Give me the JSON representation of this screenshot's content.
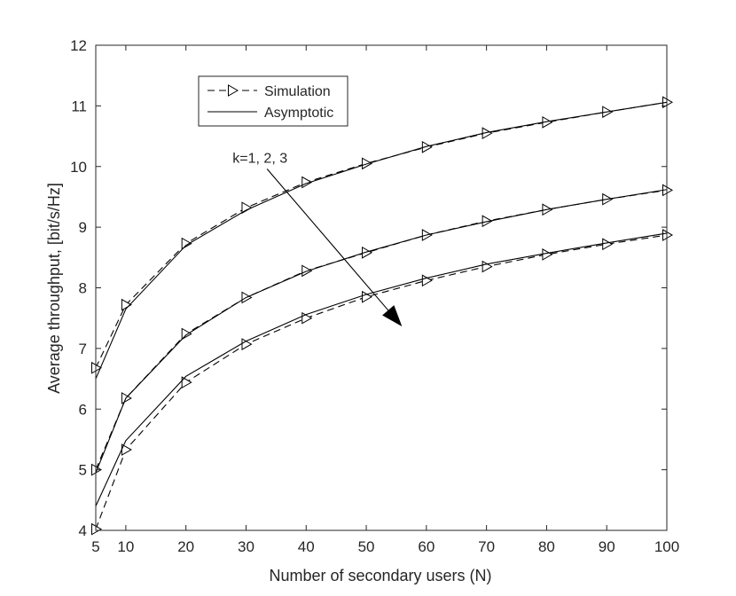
{
  "chart_data": {
    "type": "line",
    "title": "",
    "xlabel": "Number of secondary users (N)",
    "ylabel": "Average throughput, [bit/s/Hz]",
    "xlim": [
      5,
      100
    ],
    "ylim": [
      4,
      12
    ],
    "xticks": [
      5,
      10,
      20,
      30,
      40,
      50,
      60,
      70,
      80,
      90,
      100
    ],
    "yticks": [
      4,
      5,
      6,
      7,
      8,
      9,
      10,
      11,
      12
    ],
    "grid": false,
    "legend_position": "top-left",
    "x": [
      5,
      10,
      20,
      30,
      40,
      50,
      60,
      70,
      80,
      90,
      100
    ],
    "series": [
      {
        "name": "Simulation",
        "group": "k=1",
        "style": "dashed",
        "marker": "triangle-right",
        "values": [
          6.68,
          7.72,
          8.73,
          9.32,
          9.74,
          10.05,
          10.32,
          10.55,
          10.73,
          10.9,
          11.06
        ]
      },
      {
        "name": "Asymptotic",
        "group": "k=1",
        "style": "solid",
        "marker": "none",
        "values": [
          6.5,
          7.65,
          8.7,
          9.28,
          9.72,
          10.04,
          10.33,
          10.56,
          10.74,
          10.9,
          11.06
        ]
      },
      {
        "name": "Simulation",
        "group": "k=2",
        "style": "dashed",
        "marker": "triangle-right",
        "values": [
          5.0,
          6.18,
          7.24,
          7.84,
          8.28,
          8.58,
          8.87,
          9.1,
          9.29,
          9.46,
          9.61
        ]
      },
      {
        "name": "Asymptotic",
        "group": "k=2",
        "style": "solid",
        "marker": "none",
        "values": [
          4.95,
          6.18,
          7.22,
          7.84,
          8.27,
          8.59,
          8.87,
          9.09,
          9.29,
          9.46,
          9.62
        ]
      },
      {
        "name": "Simulation",
        "group": "k=3",
        "style": "dashed",
        "marker": "triangle-right",
        "values": [
          4.02,
          5.33,
          6.44,
          7.07,
          7.5,
          7.85,
          8.12,
          8.35,
          8.55,
          8.72,
          8.87
        ]
      },
      {
        "name": "Asymptotic",
        "group": "k=3",
        "style": "solid",
        "marker": "none",
        "values": [
          4.4,
          5.48,
          6.54,
          7.12,
          7.56,
          7.89,
          8.16,
          8.39,
          8.57,
          8.74,
          8.9
        ]
      }
    ],
    "legend": [
      {
        "label": "Simulation",
        "style": "dashed",
        "marker": "triangle-right"
      },
      {
        "label": "Asymptotic",
        "style": "solid",
        "marker": "none"
      }
    ],
    "annotation": {
      "text": "k=1, 2, 3",
      "arrow_from": [
        33.5,
        9.96
      ],
      "arrow_to": [
        55.8,
        7.38
      ]
    },
    "colors": {
      "line": "#000000",
      "axis": "#262626",
      "background": "#ffffff"
    }
  }
}
